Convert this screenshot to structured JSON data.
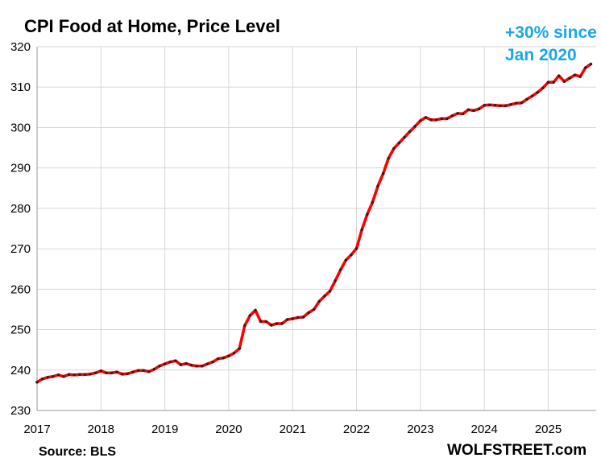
{
  "chart_data": {
    "type": "line",
    "title": "CPI Food at Home, Price Level",
    "annotation": [
      "+30% since",
      "Jan 2020"
    ],
    "xlabel": "",
    "ylabel": "",
    "source": "Source: BLS",
    "brand": "WOLFSTREET.com",
    "ylim": [
      230,
      320
    ],
    "yticks": [
      230,
      240,
      250,
      260,
      270,
      280,
      290,
      300,
      310,
      320
    ],
    "xlim": [
      2017.0,
      2025.75
    ],
    "xticks": [
      2017,
      2018,
      2019,
      2020,
      2021,
      2022,
      2023,
      2024,
      2025
    ],
    "series": [
      {
        "name": "CPI Food at Home",
        "line_color": "#ff0000",
        "marker_color": "#222222",
        "start": "2017-01",
        "values": [
          237.0,
          237.8,
          238.2,
          238.4,
          238.8,
          238.4,
          238.9,
          238.8,
          238.9,
          238.9,
          239.0,
          239.3,
          239.8,
          239.3,
          239.3,
          239.5,
          239.0,
          239.1,
          239.5,
          239.9,
          239.9,
          239.6,
          240.2,
          241.0,
          241.5,
          242.0,
          242.3,
          241.3,
          241.6,
          241.2,
          241.0,
          241.0,
          241.5,
          242.0,
          242.8,
          243.0,
          243.5,
          244.2,
          245.3,
          251.0,
          253.5,
          254.8,
          252.0,
          252.0,
          251.1,
          251.5,
          251.5,
          252.5,
          252.7,
          253.0,
          253.1,
          254.2,
          255.0,
          257.0,
          258.3,
          259.5,
          262.1,
          264.8,
          267.2,
          268.5,
          270.1,
          274.7,
          278.5,
          281.5,
          285.5,
          288.6,
          292.4,
          294.8,
          296.2,
          297.6,
          299.0,
          300.3,
          301.7,
          302.5,
          301.9,
          301.9,
          302.2,
          302.2,
          302.9,
          303.5,
          303.4,
          304.4,
          304.2,
          304.6,
          305.5,
          305.6,
          305.5,
          305.4,
          305.4,
          305.7,
          306.0,
          306.1,
          307.0,
          307.8,
          308.7,
          309.8,
          311.2,
          311.2,
          312.8,
          311.4,
          312.2,
          313.0,
          312.6,
          314.8,
          315.7
        ]
      }
    ]
  }
}
